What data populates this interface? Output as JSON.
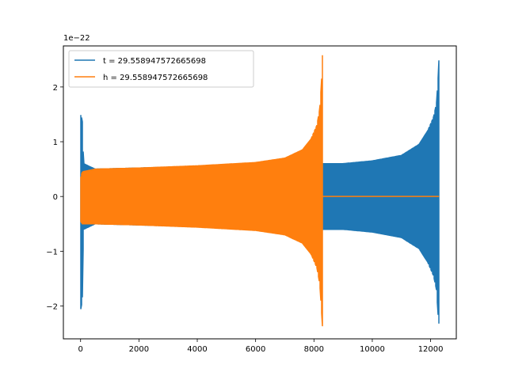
{
  "chart_data": {
    "type": "line",
    "title": "",
    "xlabel": "",
    "ylabel": "",
    "y_offset_text": "1e−22",
    "xlim": [
      -590,
      12880
    ],
    "ylim": [
      -2.6,
      2.75
    ],
    "xticks": [
      0,
      2000,
      4000,
      6000,
      8000,
      10000,
      12000
    ],
    "xtick_labels": [
      "0",
      "2000",
      "4000",
      "6000",
      "8000",
      "10000",
      "12000"
    ],
    "yticks": [
      -2,
      -1,
      0,
      1,
      2
    ],
    "ytick_labels": [
      "−2",
      "−1",
      "0",
      "1",
      "2"
    ],
    "grid": false,
    "legend_position": "top-left",
    "series": [
      {
        "name": "t = 29.558947572665698",
        "color": "#1f77b4",
        "x_start": 0,
        "x_end": 12290,
        "envelope": [
          [
            0,
            1.5,
            -2.08
          ],
          [
            60,
            1.4,
            -1.9
          ],
          [
            100,
            0.6,
            -0.6
          ],
          [
            500,
            0.5,
            -0.5
          ],
          [
            2000,
            0.52,
            -0.52
          ],
          [
            4000,
            0.55,
            -0.55
          ],
          [
            6000,
            0.58,
            -0.58
          ],
          [
            8000,
            0.6,
            -0.6
          ],
          [
            9000,
            0.6,
            -0.6
          ],
          [
            10000,
            0.65,
            -0.65
          ],
          [
            11000,
            0.75,
            -0.75
          ],
          [
            11600,
            0.95,
            -0.95
          ],
          [
            11900,
            1.2,
            -1.2
          ],
          [
            12100,
            1.45,
            -1.45
          ],
          [
            12200,
            1.7,
            -1.7
          ],
          [
            12260,
            2.2,
            -2.2
          ],
          [
            12290,
            2.58,
            -2.36
          ]
        ],
        "flat_segments": []
      },
      {
        "name": "h = 29.558947572665698",
        "color": "#ff7f0e",
        "x_start": 0,
        "x_end": 12290,
        "envelope": [
          [
            0,
            0.35,
            -0.45
          ],
          [
            60,
            0.45,
            -0.5
          ],
          [
            500,
            0.5,
            -0.5
          ],
          [
            2000,
            0.52,
            -0.52
          ],
          [
            4000,
            0.56,
            -0.56
          ],
          [
            6000,
            0.62,
            -0.62
          ],
          [
            7000,
            0.7,
            -0.7
          ],
          [
            7600,
            0.85,
            -0.85
          ],
          [
            7900,
            1.05,
            -1.05
          ],
          [
            8100,
            1.3,
            -1.3
          ],
          [
            8200,
            1.6,
            -1.6
          ],
          [
            8260,
            2.1,
            -2.1
          ],
          [
            8290,
            2.58,
            -2.37
          ]
        ],
        "flat_segments": [
          [
            8300,
            12290,
            0
          ]
        ]
      }
    ]
  }
}
